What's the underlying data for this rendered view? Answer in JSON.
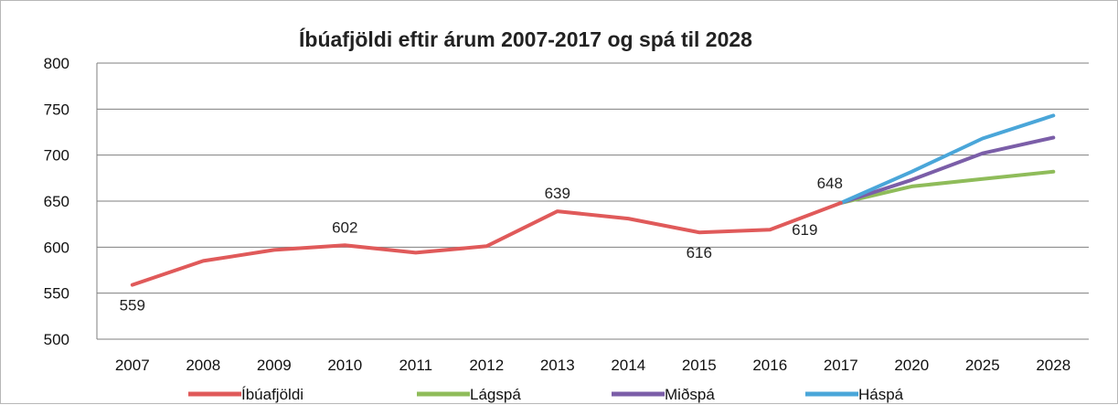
{
  "chart_data": {
    "type": "line",
    "title": "Íbúafjöldi eftir árum 2007-2017 og spá til 2028",
    "xlabel": "",
    "ylabel": "",
    "categories": [
      "2007",
      "2008",
      "2009",
      "2010",
      "2011",
      "2012",
      "2013",
      "2014",
      "2015",
      "2016",
      "2017",
      "2020",
      "2025",
      "2028"
    ],
    "ylim": [
      500,
      800
    ],
    "yticks": [
      500,
      550,
      600,
      650,
      700,
      750,
      800
    ],
    "grid": true,
    "legend_position": "bottom",
    "series": [
      {
        "name": "Íbúafjöldi",
        "color": "#e05a5a",
        "values": [
          559,
          585,
          597,
          602,
          594,
          601,
          639,
          631,
          616,
          619,
          648,
          null,
          null,
          null
        ],
        "labels": [
          "559",
          null,
          null,
          "602",
          null,
          null,
          "639",
          null,
          "616",
          "619",
          "648",
          null,
          null,
          null
        ]
      },
      {
        "name": "Lágspá",
        "color": "#8fbc5a",
        "values": [
          null,
          null,
          null,
          null,
          null,
          null,
          null,
          null,
          null,
          null,
          648,
          666,
          674,
          682
        ]
      },
      {
        "name": "Miðspá",
        "color": "#7b5ea8",
        "values": [
          null,
          null,
          null,
          null,
          null,
          null,
          null,
          null,
          null,
          null,
          648,
          673,
          702,
          719
        ]
      },
      {
        "name": "Háspá",
        "color": "#4aa6d9",
        "values": [
          null,
          null,
          null,
          null,
          null,
          null,
          null,
          null,
          null,
          null,
          648,
          682,
          718,
          743
        ]
      }
    ]
  }
}
